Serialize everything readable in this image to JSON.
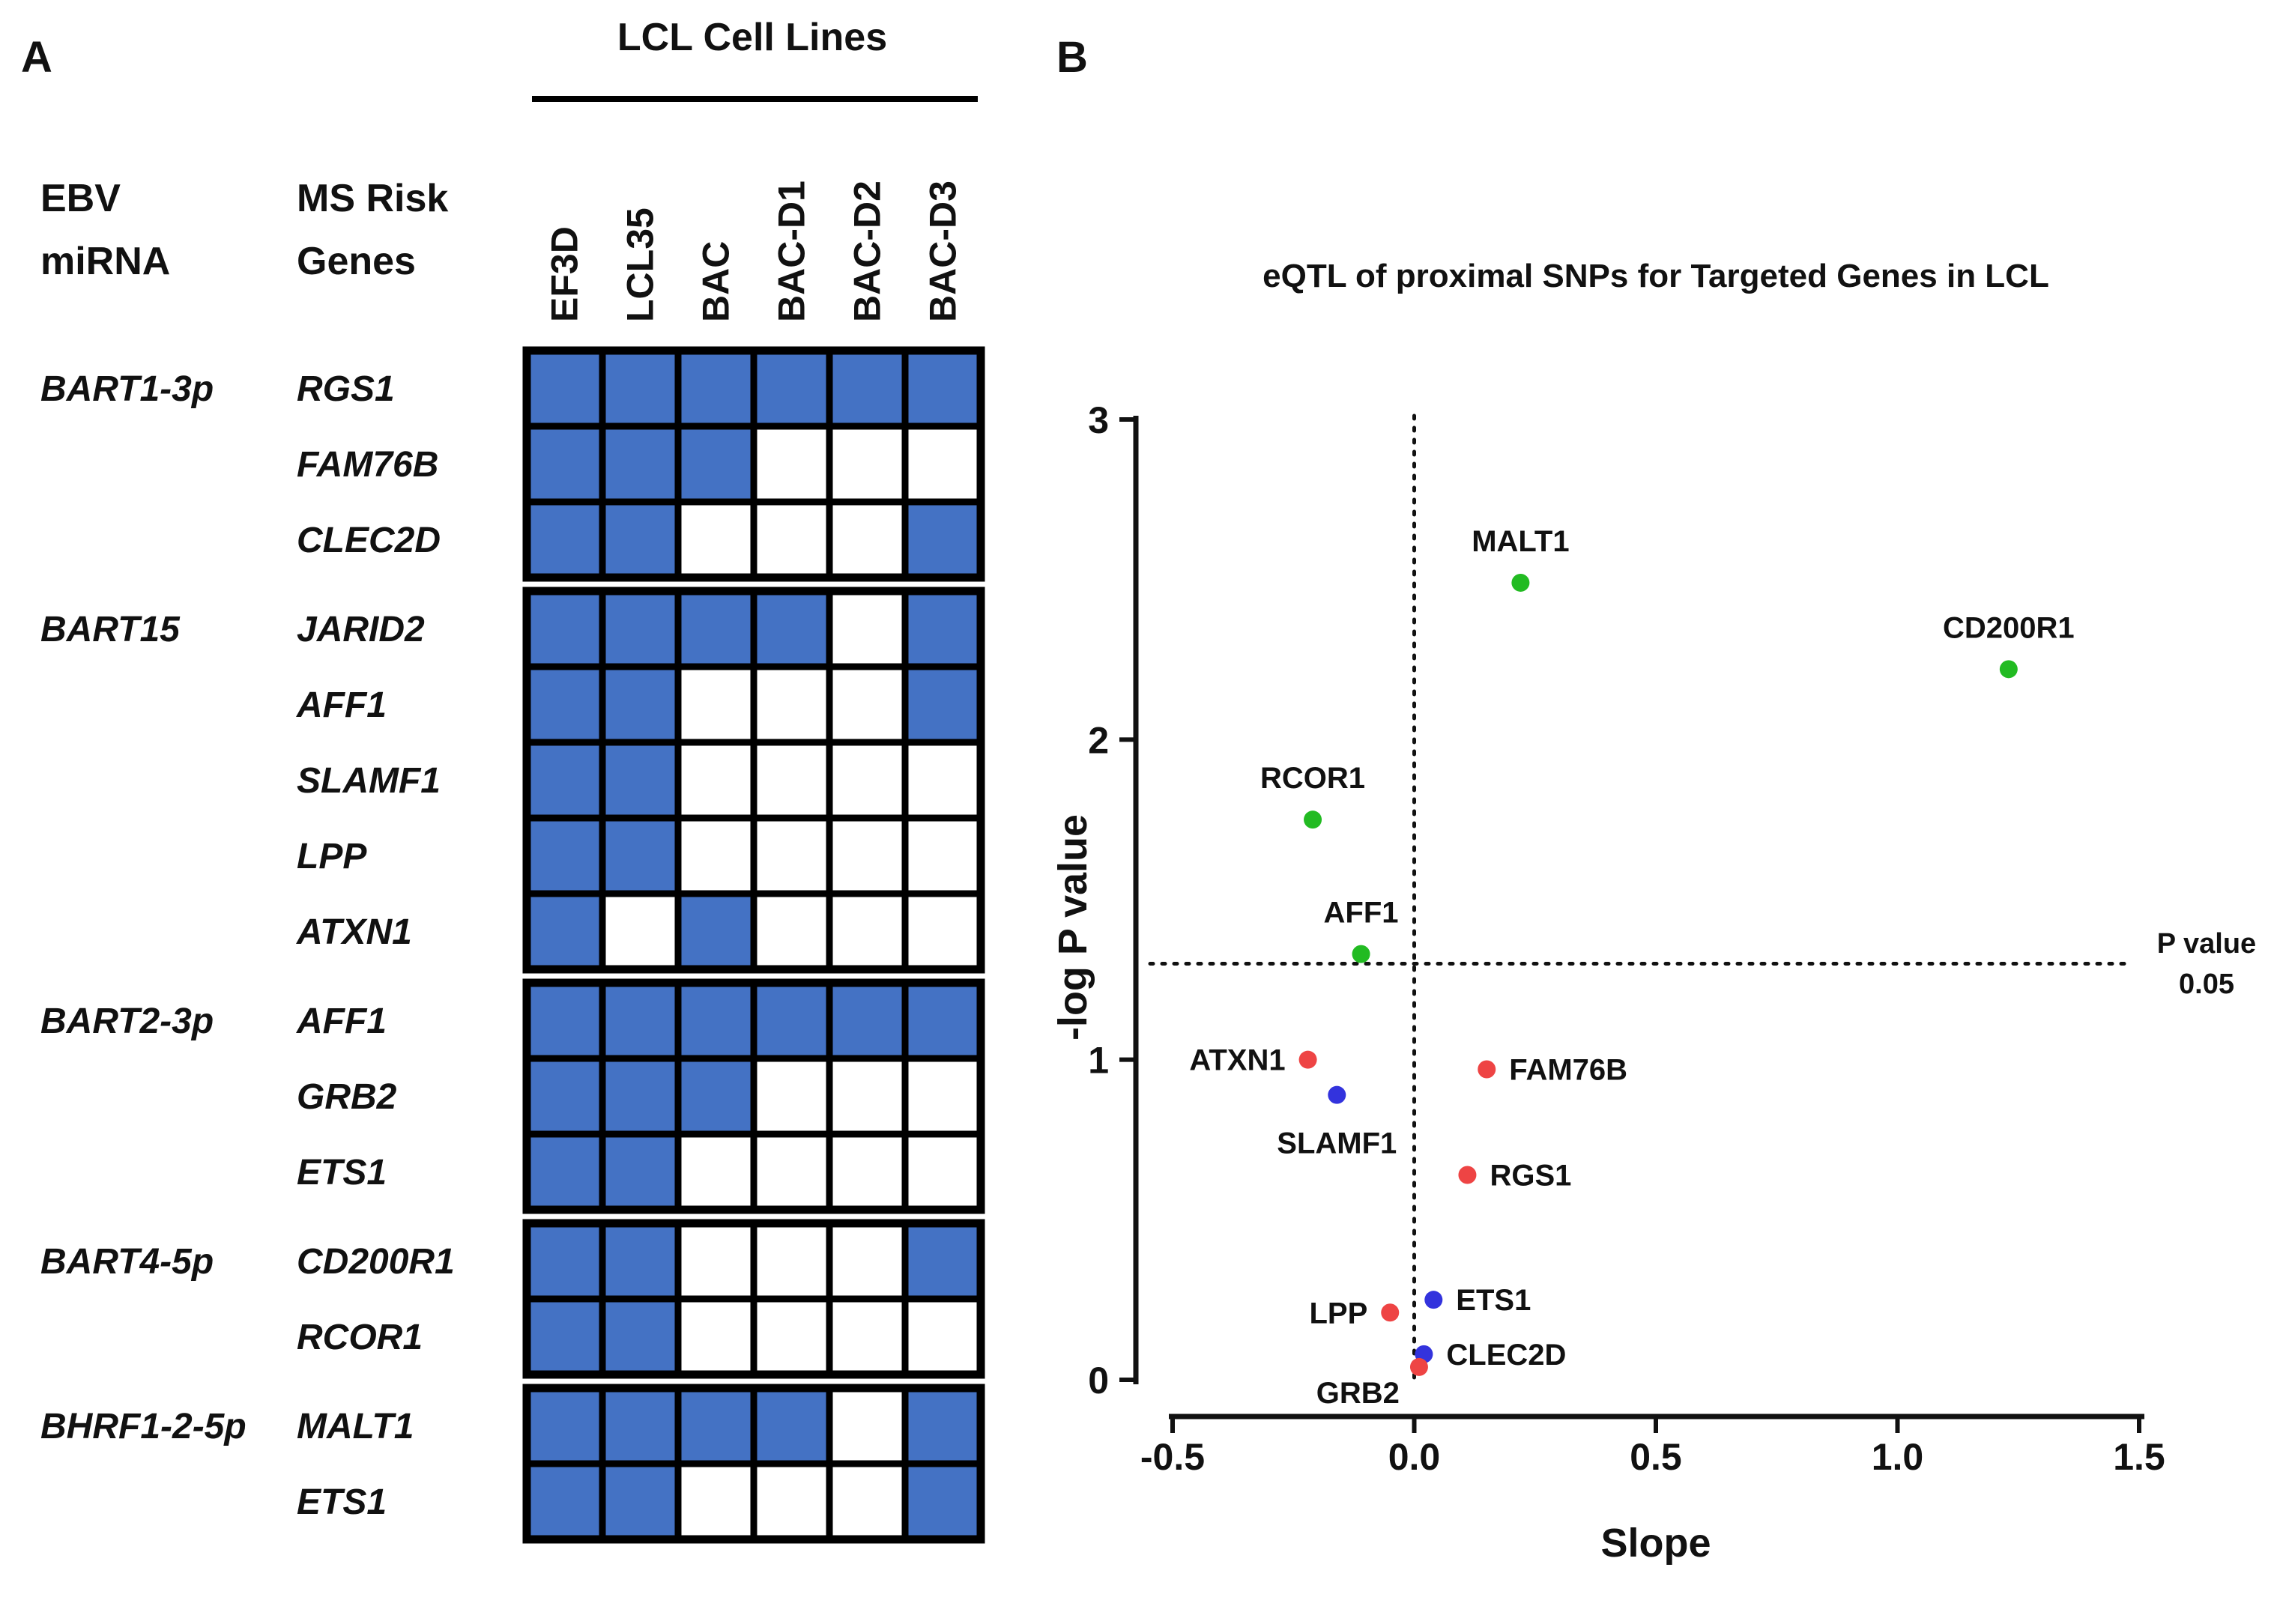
{
  "panel_a": {
    "letter": "A",
    "header": "LCL Cell Lines",
    "col_header_mirna": [
      "EBV",
      "miRNA"
    ],
    "col_header_genes": [
      "MS Risk",
      "Genes"
    ],
    "columns": [
      "EF3D",
      "LCL35",
      "BAC",
      "BAC-D1",
      "BAC-D2",
      "BAC-D3"
    ],
    "colors": {
      "filled": "#4472c4",
      "empty": "#ffffff",
      "grid": "#000000"
    },
    "groups": [
      {
        "mirna": "BART1-3p",
        "rows": [
          {
            "gene": "RGS1",
            "cells": [
              1,
              1,
              1,
              1,
              1,
              1
            ]
          },
          {
            "gene": "FAM76B",
            "cells": [
              1,
              1,
              1,
              0,
              0,
              0
            ]
          },
          {
            "gene": "CLEC2D",
            "cells": [
              1,
              1,
              0,
              0,
              0,
              1
            ]
          }
        ]
      },
      {
        "mirna": "BART15",
        "rows": [
          {
            "gene": "JARID2",
            "cells": [
              1,
              1,
              1,
              1,
              0,
              1
            ]
          },
          {
            "gene": "AFF1",
            "cells": [
              1,
              1,
              0,
              0,
              0,
              1
            ]
          },
          {
            "gene": "SLAMF1",
            "cells": [
              1,
              1,
              0,
              0,
              0,
              0
            ]
          },
          {
            "gene": "LPP",
            "cells": [
              1,
              1,
              0,
              0,
              0,
              0
            ]
          },
          {
            "gene": "ATXN1",
            "cells": [
              1,
              0,
              1,
              0,
              0,
              0
            ]
          }
        ]
      },
      {
        "mirna": "BART2-3p",
        "rows": [
          {
            "gene": "AFF1",
            "cells": [
              1,
              1,
              1,
              1,
              1,
              1
            ]
          },
          {
            "gene": "GRB2",
            "cells": [
              1,
              1,
              1,
              0,
              0,
              0
            ]
          },
          {
            "gene": "ETS1",
            "cells": [
              1,
              1,
              0,
              0,
              0,
              0
            ]
          }
        ]
      },
      {
        "mirna": "BART4-5p",
        "rows": [
          {
            "gene": "CD200R1",
            "cells": [
              1,
              1,
              0,
              0,
              0,
              1
            ]
          },
          {
            "gene": "RCOR1",
            "cells": [
              1,
              1,
              0,
              0,
              0,
              0
            ]
          }
        ]
      },
      {
        "mirna": "BHRF1-2-5p",
        "rows": [
          {
            "gene": "MALT1",
            "cells": [
              1,
              1,
              1,
              1,
              0,
              1
            ]
          },
          {
            "gene": "ETS1",
            "cells": [
              1,
              1,
              0,
              0,
              0,
              1
            ]
          }
        ]
      }
    ]
  },
  "panel_b": {
    "letter": "B",
    "pvalue_note": [
      "P value",
      "0.05"
    ]
  },
  "chart_data": {
    "type": "scatter",
    "title": "eQTL of proximal SNPs for Targeted Genes in LCL",
    "xlabel": "Slope",
    "ylabel": "-log P value",
    "xlim": [
      -0.5,
      1.5
    ],
    "ylim": [
      0,
      3
    ],
    "xticks": [
      -0.5,
      0.0,
      0.5,
      1.0,
      1.5
    ],
    "xtick_labels": [
      "-0.5",
      "0.0",
      "0.5",
      "1.0",
      "1.5"
    ],
    "yticks": [
      0,
      1,
      2,
      3
    ],
    "ytick_labels": [
      "0",
      "1",
      "2",
      "3"
    ],
    "reference_lines": {
      "x": 0,
      "y": 1.3
    },
    "colors": {
      "green": "#22bb22",
      "red": "#ee4444",
      "blue": "#3333dd"
    },
    "points": [
      {
        "label": "MALT1",
        "x": 0.22,
        "y": 2.49,
        "color": "green",
        "label_pos": "above"
      },
      {
        "label": "CD200R1",
        "x": 1.23,
        "y": 2.22,
        "color": "green",
        "label_pos": "above"
      },
      {
        "label": "RCOR1",
        "x": -0.21,
        "y": 1.75,
        "color": "green",
        "label_pos": "above"
      },
      {
        "label": "AFF1",
        "x": -0.11,
        "y": 1.33,
        "color": "green",
        "label_pos": "above"
      },
      {
        "label": "ATXN1",
        "x": -0.22,
        "y": 1.0,
        "color": "red",
        "label_pos": "left"
      },
      {
        "label": "FAM76B",
        "x": 0.15,
        "y": 0.97,
        "color": "red",
        "label_pos": "right"
      },
      {
        "label": "SLAMF1",
        "x": -0.16,
        "y": 0.89,
        "color": "blue",
        "label_pos": "below"
      },
      {
        "label": "RGS1",
        "x": 0.11,
        "y": 0.64,
        "color": "red",
        "label_pos": "right"
      },
      {
        "label": "ETS1",
        "x": 0.04,
        "y": 0.25,
        "color": "blue",
        "label_pos": "right"
      },
      {
        "label": "LPP",
        "x": -0.05,
        "y": 0.21,
        "color": "red",
        "label_pos": "left"
      },
      {
        "label": "CLEC2D",
        "x": 0.02,
        "y": 0.08,
        "color": "blue",
        "label_pos": "right"
      },
      {
        "label": "GRB2",
        "x": 0.01,
        "y": 0.04,
        "color": "red",
        "label_pos": "belowleft"
      }
    ]
  }
}
